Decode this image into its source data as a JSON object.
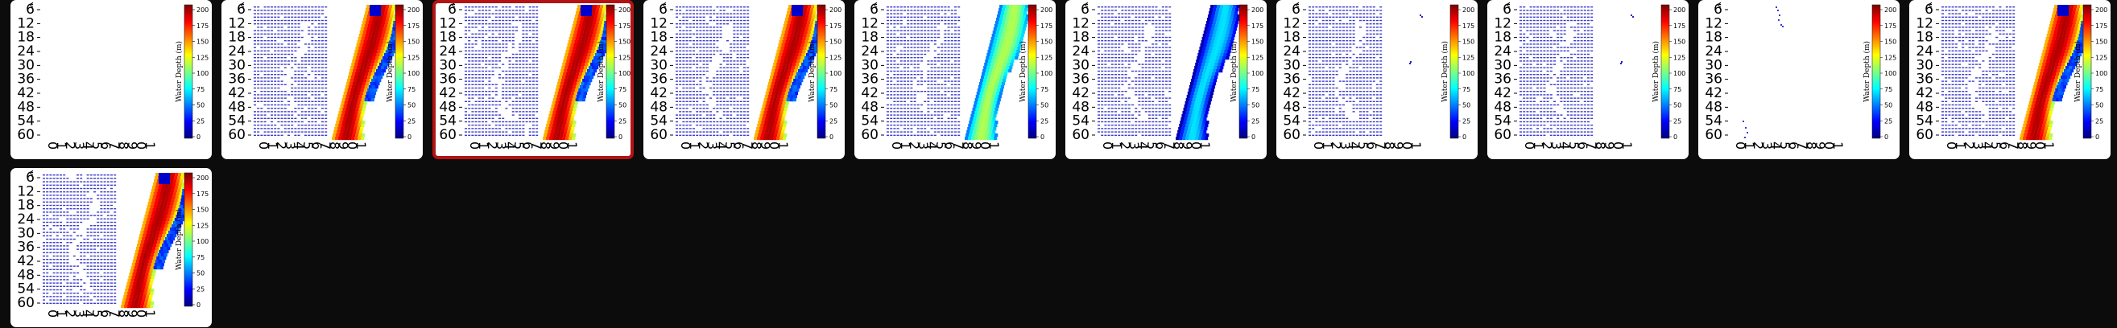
{
  "gallery": {
    "selected_index": 2,
    "thumbnails": [
      {
        "id": "frame-01",
        "variant": "empty"
      },
      {
        "id": "frame-02",
        "variant": "full"
      },
      {
        "id": "frame-03",
        "variant": "full"
      },
      {
        "id": "frame-04",
        "variant": "full"
      },
      {
        "id": "frame-05",
        "variant": "cool-band"
      },
      {
        "id": "frame-06",
        "variant": "blue-band"
      },
      {
        "id": "frame-07",
        "variant": "sparse"
      },
      {
        "id": "frame-08",
        "variant": "sparse"
      },
      {
        "id": "frame-09",
        "variant": "points-only"
      },
      {
        "id": "frame-10",
        "variant": "full"
      },
      {
        "id": "frame-11",
        "variant": "full"
      }
    ]
  },
  "plot": {
    "y_ticks": [
      "6",
      "12",
      "18",
      "24",
      "30",
      "36",
      "42",
      "48",
      "54",
      "60"
    ],
    "x_ticks": [
      "0",
      "1",
      "2",
      "3",
      "4",
      "5",
      "6",
      "7",
      "8",
      "9",
      "0",
      "1"
    ],
    "colorbar": {
      "label": "Water Depth (m)",
      "ticks": [
        "200",
        "175",
        "150",
        "125",
        "100",
        "75",
        "50",
        "25",
        "0"
      ],
      "colors": [
        "#00007f",
        "#0000ff",
        "#007fff",
        "#00ffff",
        "#7fff7f",
        "#ffff00",
        "#ff7f00",
        "#ff0000",
        "#7f0000"
      ]
    }
  }
}
